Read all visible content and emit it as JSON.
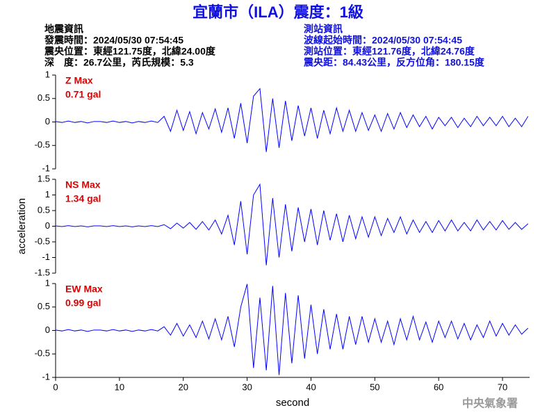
{
  "header": {
    "title": "宜蘭市（ILA）震度：1級",
    "left_info": [
      "地震資訊",
      "發震時間：2024/05/30 07:54:45",
      "震央位置：東經121.75度，北緯24.00度",
      "深　度：26.7公里，芮氏規模：5.3"
    ],
    "right_info": [
      "測站資訊",
      "波線起始時間：2024/05/30 07:54:45",
      "測站位置：東經121.76度，北緯24.76度",
      "震央距：84.43公里，反方位角：180.15度"
    ],
    "watermark": "中央氣象署"
  },
  "chart_data": [
    {
      "type": "line",
      "annotations": [
        "Z Max",
        "0.71 gal"
      ],
      "color": "#0000ff",
      "x": [
        0,
        1,
        2,
        3,
        4,
        5,
        6,
        7,
        8,
        9,
        10,
        11,
        12,
        13,
        14,
        15,
        16,
        17,
        18,
        19,
        20,
        21,
        22,
        23,
        24,
        25,
        26,
        27,
        28,
        29,
        30,
        31,
        32,
        33,
        34,
        35,
        36,
        37,
        38,
        39,
        40,
        41,
        42,
        43,
        44,
        45,
        46,
        47,
        48,
        49,
        50,
        51,
        52,
        53,
        54,
        55,
        56,
        57,
        58,
        59,
        60,
        61,
        62,
        63,
        64,
        65,
        66,
        67,
        68,
        69,
        70,
        71,
        72,
        73,
        74
      ],
      "values": [
        0.01,
        -0.01,
        0.02,
        -0.01,
        0.01,
        -0.02,
        0.01,
        0.01,
        -0.01,
        0.02,
        -0.01,
        0.01,
        -0.02,
        0.01,
        -0.01,
        0.02,
        -0.01,
        0.12,
        -0.2,
        0.25,
        -0.18,
        0.22,
        -0.25,
        0.2,
        -0.15,
        0.28,
        -0.22,
        0.3,
        -0.35,
        0.4,
        -0.45,
        0.55,
        0.71,
        -0.64,
        0.5,
        -0.55,
        0.45,
        -0.4,
        0.35,
        -0.3,
        0.3,
        -0.35,
        0.25,
        -0.25,
        0.3,
        -0.2,
        0.25,
        -0.2,
        0.2,
        -0.18,
        0.15,
        -0.2,
        0.18,
        -0.15,
        0.2,
        -0.12,
        0.15,
        -0.1,
        0.12,
        -0.15,
        0.1,
        -0.08,
        0.1,
        -0.12,
        0.08,
        -0.1,
        0.12,
        -0.08,
        0.1,
        -0.08,
        0.12,
        -0.1,
        0.08,
        -0.1,
        0.12
      ],
      "xlim": [
        0,
        74.24
      ],
      "ylim": [
        -1,
        1
      ],
      "yticks": [
        -1,
        -0.5,
        0,
        0.5,
        1
      ]
    },
    {
      "type": "line",
      "annotations": [
        "NS Max",
        "1.34 gal"
      ],
      "color": "#0000ff",
      "ylabel": "acceleration",
      "x": [
        0,
        1,
        2,
        3,
        4,
        5,
        6,
        7,
        8,
        9,
        10,
        11,
        12,
        13,
        14,
        15,
        16,
        17,
        18,
        19,
        20,
        21,
        22,
        23,
        24,
        25,
        26,
        27,
        28,
        29,
        30,
        31,
        32,
        33,
        34,
        35,
        36,
        37,
        38,
        39,
        40,
        41,
        42,
        43,
        44,
        45,
        46,
        47,
        48,
        49,
        50,
        51,
        52,
        53,
        54,
        55,
        56,
        57,
        58,
        59,
        60,
        61,
        62,
        63,
        64,
        65,
        66,
        67,
        68,
        69,
        70,
        71,
        72,
        73,
        74
      ],
      "values": [
        0.01,
        -0.01,
        0.02,
        -0.01,
        0.01,
        -0.02,
        0.01,
        0.01,
        -0.01,
        0.02,
        -0.01,
        0.01,
        -0.02,
        0.01,
        -0.01,
        0.02,
        -0.01,
        0.05,
        -0.08,
        0.1,
        -0.06,
        0.12,
        -0.1,
        0.15,
        -0.12,
        0.2,
        -0.25,
        0.35,
        -0.6,
        0.8,
        -0.9,
        1.0,
        1.34,
        -1.25,
        0.9,
        -1.0,
        0.7,
        -0.8,
        0.6,
        -0.5,
        0.55,
        -0.6,
        0.5,
        -0.45,
        0.4,
        -0.5,
        0.35,
        -0.4,
        0.3,
        -0.35,
        0.3,
        -0.3,
        0.25,
        -0.2,
        0.3,
        -0.25,
        0.2,
        -0.2,
        0.15,
        -0.2,
        0.18,
        -0.15,
        0.2,
        -0.15,
        0.12,
        -0.15,
        0.2,
        -0.12,
        0.15,
        -0.12,
        0.18,
        -0.1,
        0.12,
        -0.1,
        0.08
      ],
      "xlim": [
        0,
        74.24
      ],
      "ylim": [
        -1.5,
        1.5
      ],
      "yticks": [
        -1.5,
        -1,
        -0.5,
        0,
        0.5,
        1,
        1.5
      ]
    },
    {
      "type": "line",
      "annotations": [
        "EW Max",
        "0.99 gal"
      ],
      "color": "#0000ff",
      "xlabel": "second",
      "x": [
        0,
        1,
        2,
        3,
        4,
        5,
        6,
        7,
        8,
        9,
        10,
        11,
        12,
        13,
        14,
        15,
        16,
        17,
        18,
        19,
        20,
        21,
        22,
        23,
        24,
        25,
        26,
        27,
        28,
        29,
        30,
        31,
        32,
        33,
        34,
        35,
        36,
        37,
        38,
        39,
        40,
        41,
        42,
        43,
        44,
        45,
        46,
        47,
        48,
        49,
        50,
        51,
        52,
        53,
        54,
        55,
        56,
        57,
        58,
        59,
        60,
        61,
        62,
        63,
        64,
        65,
        66,
        67,
        68,
        69,
        70,
        71,
        72,
        73,
        74
      ],
      "values": [
        0.01,
        -0.01,
        0.02,
        -0.01,
        0.01,
        -0.02,
        0.01,
        0.01,
        -0.01,
        0.02,
        -0.01,
        0.01,
        -0.02,
        0.01,
        -0.01,
        0.02,
        -0.01,
        0.08,
        -0.1,
        0.15,
        -0.12,
        0.12,
        -0.15,
        0.2,
        -0.18,
        0.25,
        -0.2,
        0.3,
        -0.35,
        0.5,
        0.99,
        -0.8,
        0.7,
        -0.85,
        0.95,
        -0.95,
        0.8,
        -0.7,
        0.75,
        -0.6,
        0.55,
        -0.5,
        0.45,
        -0.4,
        0.35,
        -0.4,
        0.3,
        -0.3,
        0.3,
        -0.25,
        0.25,
        -0.25,
        0.2,
        -0.3,
        0.25,
        -0.2,
        0.3,
        -0.2,
        0.18,
        -0.25,
        0.2,
        -0.15,
        0.2,
        -0.18,
        0.15,
        -0.2,
        0.12,
        -0.15,
        0.2,
        -0.12,
        0.15,
        -0.1,
        0.12,
        -0.08,
        0.05
      ],
      "xlim": [
        0,
        74.24
      ],
      "ylim": [
        -1,
        1
      ],
      "yticks": [
        -1,
        -0.5,
        0,
        0.5,
        1
      ],
      "xticks": [
        0,
        10,
        20,
        30,
        40,
        50,
        60,
        70
      ]
    }
  ]
}
